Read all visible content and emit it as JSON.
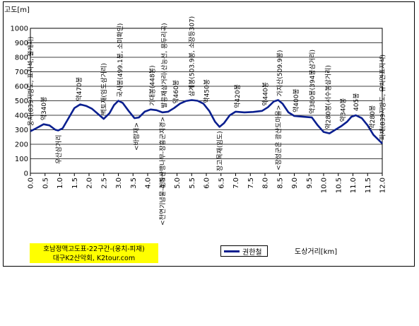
{
  "chart_data": {
    "type": "line",
    "ylabel": "고도[m]",
    "xlabel": "도상거리[km]",
    "title_lines": [
      "호남정맥고도표-22구간-(웅치-피재)",
      "대구K2산악회, K2tour.com"
    ],
    "ylim": [
      0,
      1000
    ],
    "yticks": [
      0,
      100,
      200,
      300,
      400,
      500,
      600,
      700,
      800,
      900,
      1000
    ],
    "xlim": [
      0,
      12
    ],
    "xticks": [
      "0.0",
      "0.5",
      "1.0",
      "1.5",
      "2.0",
      "2.5",
      "3.0",
      "3.5",
      "4.0",
      "4.5",
      "5.0",
      "5.5",
      "6.0",
      "6.5",
      "7.0",
      "7.5",
      "8.0",
      "8.5",
      "9.0",
      "9.5",
      "10.0",
      "10.5",
      "11.0",
      "11.5",
      "12.0"
    ],
    "grid": "horizontal",
    "series": [
      {
        "name": "권한철",
        "color": "#0a1f8f",
        "points": [
          [
            0,
            290
          ],
          [
            0.2,
            310
          ],
          [
            0.45,
            338
          ],
          [
            0.65,
            330
          ],
          [
            0.85,
            300
          ],
          [
            0.95,
            295
          ],
          [
            1.1,
            310
          ],
          [
            1.3,
            380
          ],
          [
            1.5,
            450
          ],
          [
            1.7,
            475
          ],
          [
            1.9,
            465
          ],
          [
            2.1,
            445
          ],
          [
            2.3,
            410
          ],
          [
            2.5,
            375
          ],
          [
            2.7,
            415
          ],
          [
            2.85,
            470
          ],
          [
            3.0,
            500
          ],
          [
            3.15,
            485
          ],
          [
            3.35,
            430
          ],
          [
            3.55,
            380
          ],
          [
            3.7,
            385
          ],
          [
            3.9,
            425
          ],
          [
            4.1,
            440
          ],
          [
            4.3,
            435
          ],
          [
            4.5,
            420
          ],
          [
            4.7,
            425
          ],
          [
            4.9,
            450
          ],
          [
            5.1,
            480
          ],
          [
            5.3,
            498
          ],
          [
            5.5,
            505
          ],
          [
            5.7,
            500
          ],
          [
            5.9,
            480
          ],
          [
            6.1,
            430
          ],
          [
            6.3,
            355
          ],
          [
            6.45,
            320
          ],
          [
            6.6,
            345
          ],
          [
            6.8,
            400
          ],
          [
            7.0,
            425
          ],
          [
            7.3,
            420
          ],
          [
            7.6,
            423
          ],
          [
            7.9,
            430
          ],
          [
            8.1,
            455
          ],
          [
            8.3,
            495
          ],
          [
            8.45,
            505
          ],
          [
            8.6,
            480
          ],
          [
            8.8,
            420
          ],
          [
            9.0,
            395
          ],
          [
            9.3,
            390
          ],
          [
            9.6,
            385
          ],
          [
            9.8,
            330
          ],
          [
            10.0,
            285
          ],
          [
            10.2,
            275
          ],
          [
            10.4,
            300
          ],
          [
            10.6,
            325
          ],
          [
            10.8,
            355
          ],
          [
            10.95,
            390
          ],
          [
            11.1,
            400
          ],
          [
            11.3,
            380
          ],
          [
            11.5,
            330
          ],
          [
            11.7,
            265
          ],
          [
            11.9,
            225
          ],
          [
            12.0,
            205
          ]
        ]
      }
    ],
    "annotations": [
      {
        "text": "웅치(839지방도, 표지석, 절개지)",
        "x": 0.0,
        "y": 300,
        "dir": "up"
      },
      {
        "text": "약340봉",
        "x": 0.45,
        "y": 340,
        "dir": "up"
      },
      {
        "text": "우산삼거리",
        "x": 0.95,
        "y": 295,
        "dir": "down"
      },
      {
        "text": "약470봉",
        "x": 1.65,
        "y": 475,
        "dir": "up"
      },
      {
        "text": "벽토재(임도삼거리)",
        "x": 2.5,
        "y": 378,
        "dir": "up"
      },
      {
        "text": "국사봉(499.1봉, 소미확인)",
        "x": 3.05,
        "y": 500,
        "dir": "up"
      },
      {
        "text": "<바람재>",
        "x": 3.6,
        "y": 380,
        "dir": "down"
      },
      {
        "text": "기대봉(448봉)",
        "x": 4.15,
        "y": 440,
        "dir": "up"
      },
      {
        "text": "<천연기념물-천마산팽나무-장흥군지경>",
        "x": 4.5,
        "y": 420,
        "dir": "down"
      },
      {
        "text": "발응재삼거리(산능선, 용두리곡)",
        "x": 4.55,
        "y": 425,
        "dir": "up"
      },
      {
        "text": "약460봉",
        "x": 4.95,
        "y": 455,
        "dir": "up"
      },
      {
        "text": "삼계봉(503.9봉, 소장등307)",
        "x": 5.5,
        "y": 505,
        "dir": "up"
      },
      {
        "text": "약450봉",
        "x": 6.0,
        "y": 460,
        "dir": "up"
      },
      {
        "text": "장고목재(임도)",
        "x": 6.45,
        "y": 320,
        "dir": "down"
      },
      {
        "text": "약420봉",
        "x": 7.05,
        "y": 425,
        "dir": "up"
      },
      {
        "text": "약440봉",
        "x": 8.0,
        "y": 440,
        "dir": "up"
      },
      {
        "text": "<장성군은 광산도마을>",
        "x": 8.45,
        "y": 500,
        "dir": "down"
      },
      {
        "text": "가지산(509.9봉)",
        "x": 8.5,
        "y": 505,
        "dir": "up"
      },
      {
        "text": "약400봉",
        "x": 9.05,
        "y": 395,
        "dir": "up"
      },
      {
        "text": "약380봉(394봉삼거리)",
        "x": 9.6,
        "y": 385,
        "dir": "up"
      },
      {
        "text": "약280봉(서수봉삼거리)",
        "x": 10.15,
        "y": 280,
        "dir": "up"
      },
      {
        "text": "약340봉",
        "x": 10.65,
        "y": 330,
        "dir": "up"
      },
      {
        "text": "405봉",
        "x": 11.1,
        "y": 405,
        "dir": "up"
      },
      {
        "text": "약280봉",
        "x": 11.65,
        "y": 280,
        "dir": "up"
      },
      {
        "text": "피재(839지방도, 유치면표지석)",
        "x": 12.0,
        "y": 205,
        "dir": "up"
      }
    ]
  }
}
